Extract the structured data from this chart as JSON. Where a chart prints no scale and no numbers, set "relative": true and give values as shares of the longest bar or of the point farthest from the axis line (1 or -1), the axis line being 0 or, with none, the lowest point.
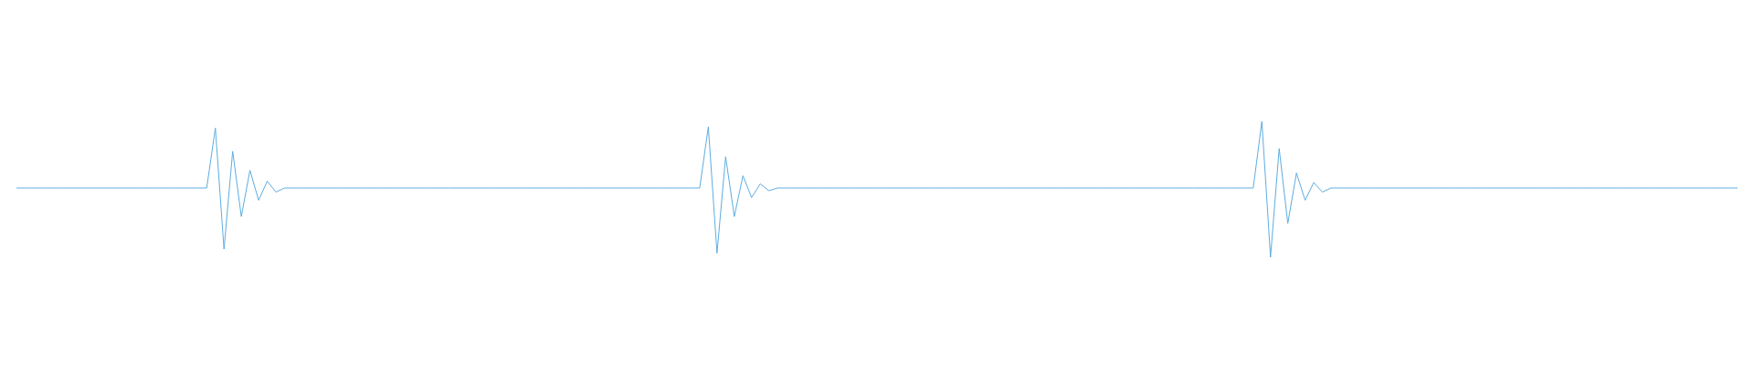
{
  "chart_data": {
    "type": "line",
    "relative": true,
    "marker": "none",
    "line_style": "solid",
    "categories": [
      null,
      null,
      null,
      null,
      null,
      null,
      null,
      null,
      null,
      null,
      null,
      null,
      null,
      null,
      null,
      null,
      null,
      null,
      null,
      null,
      null,
      null,
      null,
      null,
      null,
      null,
      null,
      null,
      null,
      null,
      null,
      null,
      null,
      null,
      null,
      null,
      null,
      null,
      null,
      null,
      null,
      null,
      null,
      null,
      null,
      null,
      null,
      null,
      null,
      null,
      null,
      null,
      null,
      null,
      null,
      null,
      null,
      null,
      null,
      null,
      null,
      null,
      null,
      null,
      null,
      null,
      null,
      null,
      null,
      null,
      null,
      null,
      null,
      null,
      null,
      null,
      null,
      null,
      null,
      null,
      null,
      null,
      null,
      null,
      null,
      null,
      null,
      null,
      null,
      null,
      null,
      null,
      null,
      null,
      null,
      null,
      null,
      null,
      null,
      null,
      null,
      null,
      null,
      null,
      null,
      null,
      null,
      null,
      null,
      null,
      null,
      null,
      null,
      null,
      null,
      null,
      null,
      null,
      null,
      null,
      null,
      null,
      null,
      null,
      null,
      null,
      null,
      null,
      null,
      null,
      null,
      null,
      null,
      null,
      null,
      null,
      null,
      null,
      null,
      null,
      null,
      null,
      null,
      null,
      null,
      null,
      null,
      null,
      null,
      null,
      null,
      null,
      null,
      null,
      null,
      null,
      null,
      null,
      null,
      null,
      null,
      null,
      null,
      null,
      null,
      null,
      null,
      null,
      null,
      null,
      null,
      null,
      null,
      null,
      null,
      null,
      null,
      null,
      null,
      null,
      null,
      null,
      null,
      null,
      null,
      null,
      null,
      null,
      null,
      null,
      null,
      null,
      null,
      null,
      null,
      null,
      null,
      null,
      null,
      null
    ],
    "series": [
      {
        "color": "#5dade2",
        "values": [
          0.51,
          0.51,
          0.51,
          0.51,
          0.51,
          0.51,
          0.51,
          0.51,
          0.51,
          0.51,
          0.51,
          0.51,
          0.51,
          0.51,
          0.51,
          0.51,
          0.51,
          0.51,
          0.51,
          0.51,
          0.51,
          0.51,
          0.51,
          0.95,
          0.06,
          0.78,
          0.3,
          0.64,
          0.42,
          0.56,
          0.48,
          0.51,
          0.51,
          0.51,
          0.51,
          0.51,
          0.51,
          0.51,
          0.51,
          0.51,
          0.51,
          0.51,
          0.51,
          0.51,
          0.51,
          0.51,
          0.51,
          0.51,
          0.51,
          0.51,
          0.51,
          0.51,
          0.51,
          0.51,
          0.51,
          0.51,
          0.51,
          0.51,
          0.51,
          0.51,
          0.51,
          0.51,
          0.51,
          0.51,
          0.51,
          0.51,
          0.51,
          0.51,
          0.51,
          0.51,
          0.51,
          0.51,
          0.51,
          0.51,
          0.51,
          0.51,
          0.51,
          0.51,
          0.51,
          0.51,
          0.96,
          0.03,
          0.74,
          0.3,
          0.6,
          0.44,
          0.54,
          0.49,
          0.51,
          0.51,
          0.51,
          0.51,
          0.51,
          0.51,
          0.51,
          0.51,
          0.51,
          0.51,
          0.51,
          0.51,
          0.51,
          0.51,
          0.51,
          0.51,
          0.51,
          0.51,
          0.51,
          0.51,
          0.51,
          0.51,
          0.51,
          0.51,
          0.51,
          0.51,
          0.51,
          0.51,
          0.51,
          0.51,
          0.51,
          0.51,
          0.51,
          0.51,
          0.51,
          0.51,
          0.51,
          0.51,
          0.51,
          0.51,
          0.51,
          0.51,
          0.51,
          0.51,
          0.51,
          0.51,
          0.51,
          0.51,
          0.51,
          0.51,
          0.51,
          0.51,
          0.51,
          0.51,
          0.51,
          0.51,
          1.0,
          0.0,
          0.8,
          0.25,
          0.62,
          0.42,
          0.55,
          0.48,
          0.51,
          0.51,
          0.51,
          0.51,
          0.51,
          0.51,
          0.51,
          0.51,
          0.51,
          0.51,
          0.51,
          0.51,
          0.51,
          0.51,
          0.51,
          0.51,
          0.51,
          0.51,
          0.51,
          0.51,
          0.51,
          0.51,
          0.51,
          0.51,
          0.51,
          0.51,
          0.51,
          0.51,
          0.51,
          0.51,
          0.51,
          0.51,
          0.51,
          0.51,
          0.51,
          0.51,
          0.51,
          0.51,
          0.51,
          0.51,
          0.51,
          0.51,
          0.51,
          0.51,
          0.51,
          0.51,
          0.51,
          0.51
        ]
      }
    ]
  }
}
